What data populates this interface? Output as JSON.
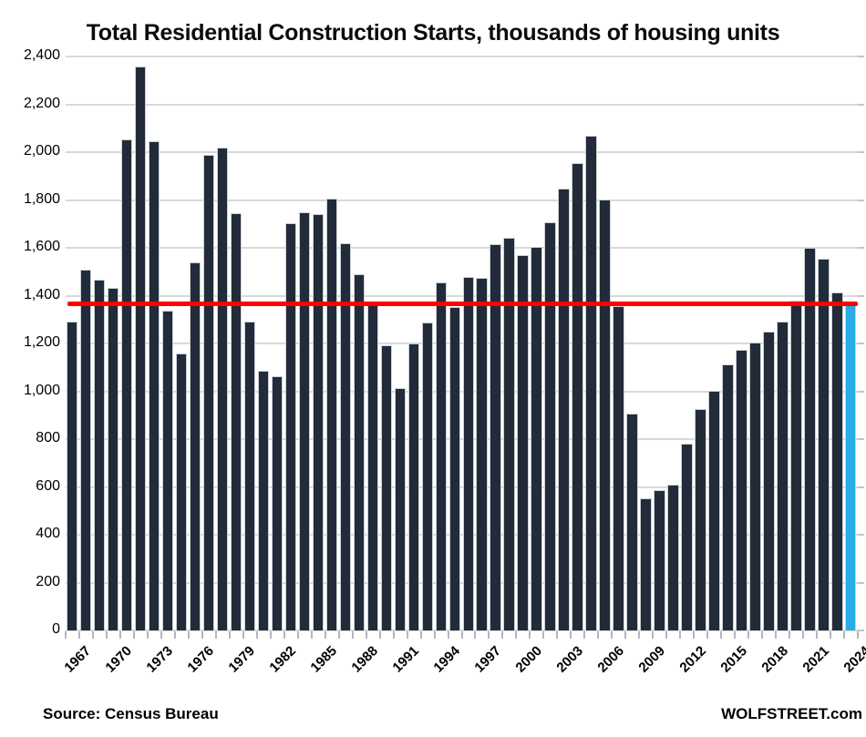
{
  "title": "Total Residential Construction Starts, thousands of housing units",
  "footer": {
    "source": "Source: Census Bureau",
    "brand": "WOLFSTREET.com"
  },
  "colors": {
    "bar": "#222b39",
    "bar_border": "#ccd1d6",
    "highlight_bar": "#29abe8",
    "red_line": "#fe0000",
    "gridline": "#d9d9d9",
    "text": "#000000"
  },
  "chart_data": {
    "type": "bar",
    "title": "Total Residential Construction Starts, thousands of housing units",
    "xlabel": "",
    "ylabel": "thousands of housing units",
    "ylim": [
      0,
      2400
    ],
    "grid": true,
    "legend": false,
    "years": [
      1967,
      1968,
      1969,
      1970,
      1971,
      1972,
      1973,
      1974,
      1975,
      1976,
      1977,
      1978,
      1979,
      1980,
      1981,
      1982,
      1983,
      1984,
      1985,
      1986,
      1987,
      1988,
      1989,
      1990,
      1991,
      1992,
      1993,
      1994,
      1995,
      1996,
      1997,
      1998,
      1999,
      2000,
      2001,
      2002,
      2003,
      2004,
      2005,
      2006,
      2007,
      2008,
      2009,
      2010,
      2011,
      2012,
      2013,
      2014,
      2015,
      2016,
      2017,
      2018,
      2019,
      2020,
      2021,
      2022,
      2023,
      2024
    ],
    "values": [
      1292,
      1508,
      1467,
      1434,
      2052,
      2357,
      2045,
      1338,
      1160,
      1538,
      1987,
      2020,
      1745,
      1292,
      1084,
      1062,
      1703,
      1750,
      1742,
      1805,
      1620,
      1488,
      1376,
      1193,
      1014,
      1200,
      1288,
      1457,
      1354,
      1477,
      1474,
      1617,
      1641,
      1569,
      1603,
      1705,
      1848,
      1956,
      2068,
      1801,
      1355,
      906,
      554,
      587,
      609,
      781,
      925,
      1003,
      1112,
      1174,
      1203,
      1250,
      1290,
      1380,
      1601,
      1553,
      1413,
      1366
    ],
    "highlight_year": 2024,
    "red_line_value": 1366,
    "y_tick_values": [
      0,
      200,
      400,
      600,
      800,
      1000,
      1200,
      1400,
      1600,
      1800,
      2000,
      2200,
      2400
    ],
    "y_tick_labels": [
      "0",
      "200",
      "400",
      "600",
      "800",
      "1,000",
      "1,200",
      "1,400",
      "1,600",
      "1,800",
      "2,000",
      "2,200",
      "2,400"
    ],
    "x_tick_labels": [
      "1967",
      "1970",
      "1973",
      "1976",
      "1979",
      "1982",
      "1985",
      "1988",
      "1991",
      "1994",
      "1997",
      "2000",
      "2003",
      "2006",
      "2009",
      "2012",
      "2015",
      "2018",
      "2021",
      "2024"
    ]
  }
}
